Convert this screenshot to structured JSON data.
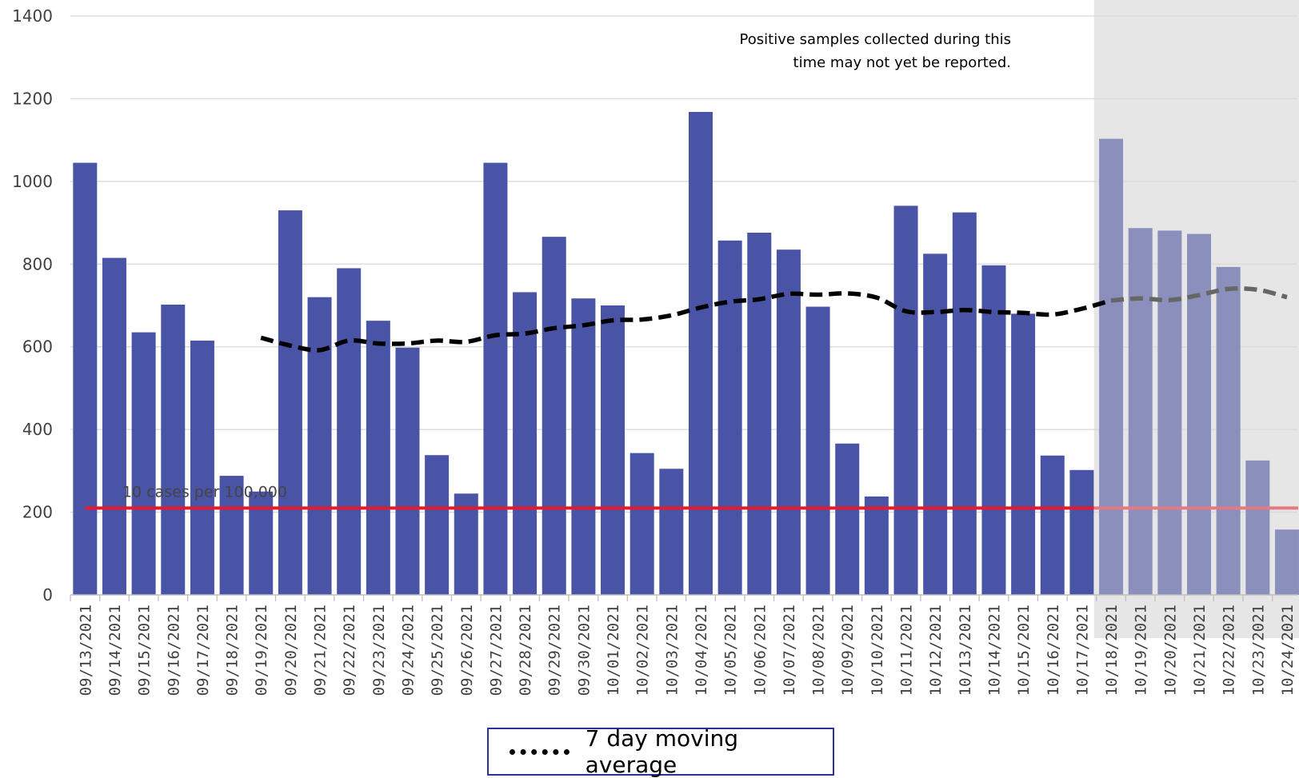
{
  "chart_data": {
    "type": "bar",
    "title": "",
    "xlabel": "",
    "ylabel": "",
    "ylim": [
      0,
      1400
    ],
    "yticks": [
      0,
      200,
      400,
      600,
      800,
      1000,
      1200,
      1400
    ],
    "grid": true,
    "categories": [
      "09/13/2021",
      "09/14/2021",
      "09/15/2021",
      "09/16/2021",
      "09/17/2021",
      "09/18/2021",
      "09/19/2021",
      "09/20/2021",
      "09/21/2021",
      "09/22/2021",
      "09/23/2021",
      "09/24/2021",
      "09/25/2021",
      "09/26/2021",
      "09/27/2021",
      "09/28/2021",
      "09/29/2021",
      "09/30/2021",
      "10/01/2021",
      "10/02/2021",
      "10/03/2021",
      "10/04/2021",
      "10/05/2021",
      "10/06/2021",
      "10/07/2021",
      "10/08/2021",
      "10/09/2021",
      "10/10/2021",
      "10/11/2021",
      "10/12/2021",
      "10/13/2021",
      "10/14/2021",
      "10/15/2021",
      "10/16/2021",
      "10/17/2021",
      "10/18/2021",
      "10/19/2021",
      "10/20/2021",
      "10/21/2021",
      "10/22/2021",
      "10/23/2021",
      "10/24/2021"
    ],
    "series": [
      {
        "values": [
          1045,
          815,
          635,
          702,
          615,
          288,
          250,
          930,
          720,
          790,
          663,
          598,
          338,
          245,
          1045,
          732,
          866,
          717,
          700,
          343,
          305,
          1168,
          857,
          876,
          835,
          697,
          366,
          238,
          941,
          825,
          925,
          797,
          680,
          337,
          302,
          1103,
          887,
          881,
          873,
          793,
          325,
          158
        ],
        "color": "#4a54a6",
        "pending_color": "#8b8fbb"
      },
      {
        "name": "7 day moving average",
        "type": "line",
        "style": "dashed",
        "values": [
          null,
          null,
          null,
          null,
          null,
          null,
          622,
          603,
          592,
          615,
          608,
          608,
          615,
          612,
          628,
          632,
          645,
          652,
          664,
          666,
          676,
          695,
          709,
          715,
          728,
          726,
          729,
          719,
          686,
          684,
          689,
          684,
          682,
          678,
          692,
          712,
          717,
          713,
          725,
          740,
          738,
          720
        ],
        "color": "#000000",
        "pending_color": "#666666"
      }
    ],
    "threshold": {
      "value": 210,
      "label": "10 cases per 100,000",
      "color": "#e8192c",
      "pending_color": "#e57a84"
    },
    "pending_period": {
      "start": "10/18/2021",
      "end": "10/24/2021",
      "shade_color": "#e6e6e6"
    },
    "annotation": [
      "Positive samples collected during this",
      "time may not yet be reported."
    ],
    "legend": {
      "placement": "bottom-center",
      "entries": [
        "7 day moving average"
      ]
    }
  }
}
